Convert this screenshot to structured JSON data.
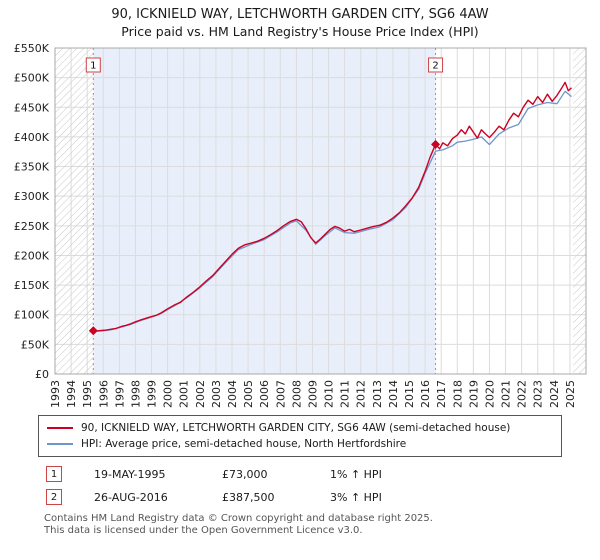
{
  "title": "90, ICKNIELD WAY, LETCHWORTH GARDEN CITY, SG6 4AW",
  "subtitle": "Price paid vs. HM Land Registry's House Price Index (HPI)",
  "colors": {
    "property_line": "#cc0022",
    "hpi_line": "#6e96c8",
    "sale_marker": "#cc0022",
    "sale_vline": "#e87070",
    "shade": "#e9effa",
    "hatch": "#c8c8c8",
    "grid": "#dcdcdc",
    "plot_border": "#a8a8a8",
    "badge_border": "#cc4444"
  },
  "chart_data": {
    "type": "line",
    "title": "90, ICKNIELD WAY, LETCHWORTH GARDEN CITY, SG6 4AW",
    "subtitle": "Price paid vs. HM Land Registry's House Price Index (HPI)",
    "xlim": [
      1993,
      2026
    ],
    "ylim": [
      0,
      550000
    ],
    "grid": true,
    "legend_position": "bottom",
    "y_ticks": [
      {
        "v": 0,
        "label": "£0"
      },
      {
        "v": 50000,
        "label": "£50K"
      },
      {
        "v": 100000,
        "label": "£100K"
      },
      {
        "v": 150000,
        "label": "£150K"
      },
      {
        "v": 200000,
        "label": "£200K"
      },
      {
        "v": 250000,
        "label": "£250K"
      },
      {
        "v": 300000,
        "label": "£300K"
      },
      {
        "v": 350000,
        "label": "£350K"
      },
      {
        "v": 400000,
        "label": "£400K"
      },
      {
        "v": 450000,
        "label": "£450K"
      },
      {
        "v": 500000,
        "label": "£500K"
      },
      {
        "v": 550000,
        "label": "£550K"
      }
    ],
    "x_ticks": [
      1993,
      1994,
      1995,
      1996,
      1997,
      1998,
      1999,
      2000,
      2001,
      2002,
      2003,
      2004,
      2005,
      2006,
      2007,
      2008,
      2009,
      2010,
      2011,
      2012,
      2013,
      2014,
      2015,
      2016,
      2017,
      2018,
      2019,
      2020,
      2021,
      2022,
      2023,
      2024,
      2025
    ],
    "shaded_region": {
      "from": 1995.38,
      "to": 2016.65
    },
    "hatched_regions": [
      {
        "from": 1993,
        "to": 1995.38
      },
      {
        "from": 2025.2,
        "to": 2026
      }
    ],
    "sales": [
      {
        "label": "1",
        "x": 1995.38,
        "y": 73000
      },
      {
        "label": "2",
        "x": 2016.65,
        "y": 387500
      }
    ],
    "series": [
      {
        "name": "90, ICKNIELD WAY, LETCHWORTH GARDEN CITY, SG6 4AW (semi-detached house)",
        "color": "#cc0022",
        "points": [
          [
            1995.38,
            73000
          ],
          [
            1995.6,
            72500
          ],
          [
            1995.9,
            73500
          ],
          [
            1996.2,
            74000
          ],
          [
            1996.5,
            75500
          ],
          [
            1996.8,
            77000
          ],
          [
            1997.1,
            80000
          ],
          [
            1997.4,
            82000
          ],
          [
            1997.7,
            84500
          ],
          [
            1998.0,
            88000
          ],
          [
            1998.3,
            91000
          ],
          [
            1998.6,
            93500
          ],
          [
            1999.0,
            97000
          ],
          [
            1999.3,
            99000
          ],
          [
            1999.6,
            103000
          ],
          [
            2000.0,
            110000
          ],
          [
            2000.4,
            116000
          ],
          [
            2000.8,
            121000
          ],
          [
            2001.2,
            130000
          ],
          [
            2001.6,
            138000
          ],
          [
            2002.0,
            147000
          ],
          [
            2002.4,
            157000
          ],
          [
            2002.8,
            166000
          ],
          [
            2003.2,
            178000
          ],
          [
            2003.6,
            190000
          ],
          [
            2004.0,
            202000
          ],
          [
            2004.4,
            212000
          ],
          [
            2004.8,
            218000
          ],
          [
            2005.2,
            221000
          ],
          [
            2005.6,
            224000
          ],
          [
            2006.0,
            229000
          ],
          [
            2006.4,
            235000
          ],
          [
            2006.8,
            242000
          ],
          [
            2007.2,
            250000
          ],
          [
            2007.6,
            257000
          ],
          [
            2008.0,
            261000
          ],
          [
            2008.3,
            257000
          ],
          [
            2008.6,
            245000
          ],
          [
            2008.9,
            230000
          ],
          [
            2009.2,
            221000
          ],
          [
            2009.5,
            228000
          ],
          [
            2009.8,
            236000
          ],
          [
            2010.1,
            244000
          ],
          [
            2010.4,
            249000
          ],
          [
            2010.7,
            246000
          ],
          [
            2011.0,
            241000
          ],
          [
            2011.3,
            244000
          ],
          [
            2011.6,
            240000
          ],
          [
            2012.0,
            243000
          ],
          [
            2012.4,
            246000
          ],
          [
            2012.8,
            249000
          ],
          [
            2013.2,
            251000
          ],
          [
            2013.6,
            256000
          ],
          [
            2014.0,
            263000
          ],
          [
            2014.4,
            272000
          ],
          [
            2014.8,
            284000
          ],
          [
            2015.2,
            297000
          ],
          [
            2015.6,
            315000
          ],
          [
            2016.0,
            342000
          ],
          [
            2016.3,
            365000
          ],
          [
            2016.65,
            387500
          ],
          [
            2016.9,
            380000
          ],
          [
            2017.1,
            390000
          ],
          [
            2017.4,
            385000
          ],
          [
            2017.7,
            397000
          ],
          [
            2018.0,
            403000
          ],
          [
            2018.25,
            412000
          ],
          [
            2018.5,
            405000
          ],
          [
            2018.75,
            418000
          ],
          [
            2019.0,
            408000
          ],
          [
            2019.25,
            398000
          ],
          [
            2019.5,
            412000
          ],
          [
            2019.75,
            405000
          ],
          [
            2020.0,
            399000
          ],
          [
            2020.3,
            408000
          ],
          [
            2020.6,
            418000
          ],
          [
            2020.9,
            412000
          ],
          [
            2021.2,
            428000
          ],
          [
            2021.5,
            440000
          ],
          [
            2021.8,
            434000
          ],
          [
            2022.1,
            450000
          ],
          [
            2022.4,
            462000
          ],
          [
            2022.7,
            455000
          ],
          [
            2023.0,
            468000
          ],
          [
            2023.3,
            458000
          ],
          [
            2023.6,
            472000
          ],
          [
            2023.9,
            460000
          ],
          [
            2024.2,
            470000
          ],
          [
            2024.5,
            483000
          ],
          [
            2024.7,
            492000
          ],
          [
            2024.9,
            478000
          ],
          [
            2025.1,
            483000
          ]
        ]
      },
      {
        "name": "HPI: Average price, semi-detached house, North Hertfordshire",
        "color": "#6e96c8",
        "points": [
          [
            1995.38,
            72300
          ],
          [
            1995.9,
            72800
          ],
          [
            1996.5,
            74800
          ],
          [
            1997.1,
            79200
          ],
          [
            1997.7,
            83600
          ],
          [
            1998.3,
            90100
          ],
          [
            1999.0,
            96000
          ],
          [
            1999.6,
            102000
          ],
          [
            2000.4,
            114800
          ],
          [
            2001.2,
            128700
          ],
          [
            2002.0,
            145500
          ],
          [
            2002.8,
            164300
          ],
          [
            2003.6,
            188100
          ],
          [
            2004.4,
            209900
          ],
          [
            2005.2,
            218800
          ],
          [
            2006.0,
            226700
          ],
          [
            2006.8,
            239600
          ],
          [
            2007.6,
            254400
          ],
          [
            2008.0,
            258400
          ],
          [
            2008.6,
            242500
          ],
          [
            2009.2,
            218800
          ],
          [
            2009.8,
            233600
          ],
          [
            2010.4,
            246500
          ],
          [
            2011.0,
            238600
          ],
          [
            2011.6,
            237600
          ],
          [
            2012.4,
            243500
          ],
          [
            2013.2,
            248500
          ],
          [
            2014.0,
            260400
          ],
          [
            2014.8,
            281200
          ],
          [
            2015.6,
            311800
          ],
          [
            2016.0,
            338600
          ],
          [
            2016.65,
            376000
          ],
          [
            2017.1,
            378000
          ],
          [
            2017.7,
            385000
          ],
          [
            2018.0,
            391000
          ],
          [
            2018.5,
            393000
          ],
          [
            2019.0,
            396000
          ],
          [
            2019.5,
            400000
          ],
          [
            2020.0,
            387000
          ],
          [
            2020.6,
            405000
          ],
          [
            2021.2,
            415000
          ],
          [
            2021.8,
            421000
          ],
          [
            2022.4,
            448000
          ],
          [
            2023.0,
            454000
          ],
          [
            2023.6,
            458000
          ],
          [
            2024.2,
            456000
          ],
          [
            2024.7,
            477000
          ],
          [
            2025.1,
            468000
          ]
        ]
      }
    ]
  },
  "legend": [
    {
      "label": "90, ICKNIELD WAY, LETCHWORTH GARDEN CITY, SG6 4AW (semi-detached house)",
      "color": "#cc0022"
    },
    {
      "label": "HPI: Average price, semi-detached house, North Hertfordshire",
      "color": "#6e96c8"
    }
  ],
  "transactions": [
    {
      "n": "1",
      "date": "19-MAY-1995",
      "price": "£73,000",
      "hpi": "1% ↑ HPI"
    },
    {
      "n": "2",
      "date": "26-AUG-2016",
      "price": "£387,500",
      "hpi": "3% ↑ HPI"
    }
  ],
  "footer": {
    "line1": "Contains HM Land Registry data © Crown copyright and database right 2025.",
    "line2": "This data is licensed under the Open Government Licence v3.0."
  }
}
